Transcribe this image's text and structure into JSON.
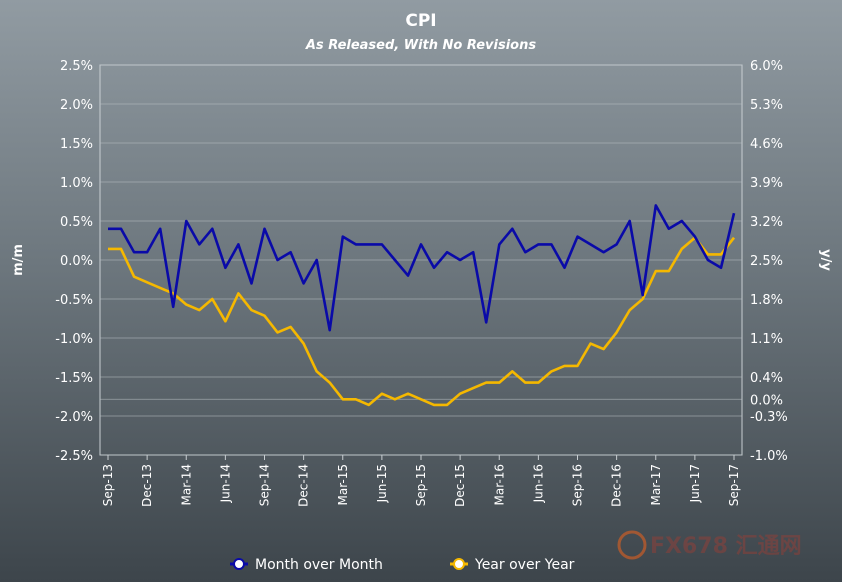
{
  "chart_data": {
    "type": "line",
    "title": "CPI",
    "subtitle": "As Released, With No Revisions",
    "y_left_label": "m/m",
    "y_right_label": "y/y",
    "y_left_ticks": [
      "2.5%",
      "2.0%",
      "1.5%",
      "1.0%",
      "0.5%",
      "0.0%",
      "-0.5%",
      "-1.0%",
      "-1.5%",
      "-2.0%",
      "-2.5%"
    ],
    "y_right_ticks": [
      "6.0%",
      "5.3%",
      "4.6%",
      "3.9%",
      "3.2%",
      "2.5%",
      "1.8%",
      "1.1%",
      "0.4%",
      "0.0%",
      "-0.3%",
      "-1.0%"
    ],
    "y_left_range": [
      -2.5,
      2.5
    ],
    "y_right_range": [
      -1.0,
      6.0
    ],
    "x_tick_labels": [
      "Sep-13",
      "Dec-13",
      "Mar-14",
      "Jun-14",
      "Sep-14",
      "Dec-14",
      "Mar-15",
      "Jun-15",
      "Sep-15",
      "Dec-15",
      "Mar-16",
      "Jun-16",
      "Sep-16",
      "Dec-16",
      "Mar-17",
      "Jun-17",
      "Sep-17"
    ],
    "x_start": "Sep-13",
    "x_end": "Sep-17",
    "series": [
      {
        "name": "Month over Month",
        "axis": "left",
        "color": "#0a0aa8",
        "values": [
          0.4,
          0.4,
          0.1,
          0.1,
          0.4,
          -0.6,
          0.5,
          0.2,
          0.4,
          -0.1,
          0.2,
          -0.3,
          0.4,
          0.0,
          0.1,
          -0.3,
          0.0,
          -0.9,
          0.3,
          0.2,
          0.2,
          0.2,
          0.0,
          -0.2,
          0.2,
          -0.1,
          0.1,
          0.0,
          0.1,
          -0.8,
          0.2,
          0.4,
          0.1,
          0.2,
          0.2,
          -0.1,
          0.3,
          0.2,
          0.1,
          0.2,
          0.5,
          -0.45,
          0.7,
          0.4,
          0.5,
          0.3,
          0.0,
          -0.1,
          0.6
        ]
      },
      {
        "name": "Year over Year",
        "axis": "right",
        "color": "#f5b800",
        "values": [
          2.7,
          2.7,
          2.2,
          2.1,
          2.0,
          1.9,
          1.7,
          1.6,
          1.8,
          1.4,
          1.9,
          1.6,
          1.5,
          1.2,
          1.3,
          1.0,
          0.5,
          0.3,
          0.0,
          0.0,
          -0.1,
          0.1,
          0.0,
          0.1,
          0.0,
          -0.1,
          -0.1,
          0.1,
          0.2,
          0.3,
          0.3,
          0.5,
          0.3,
          0.3,
          0.5,
          0.6,
          0.6,
          1.0,
          0.9,
          1.2,
          1.6,
          1.8,
          2.3,
          2.3,
          2.7,
          2.9,
          2.6,
          2.6,
          2.9
        ]
      }
    ],
    "grid": "horizontal",
    "legend_position": "bottom"
  },
  "watermark": {
    "text": "FX678 汇通网"
  }
}
